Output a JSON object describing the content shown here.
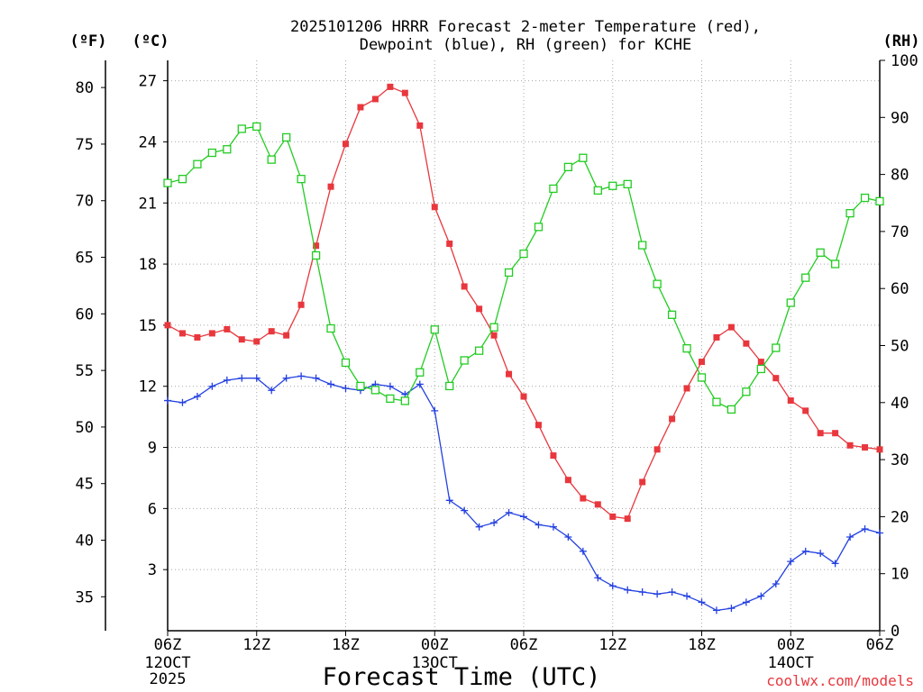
{
  "chart_data": {
    "type": "line",
    "title_line1": "2025101206 HRRR Forecast 2-meter Temperature (red),",
    "title_line2": "Dewpoint (blue), RH (green) for KCHE",
    "xlabel": "Forecast Time (UTC)",
    "credit": "coolwx.com/models",
    "units": {
      "fahrenheit": "(ºF)",
      "celsius": "(ºC)",
      "rh": "(RH)"
    },
    "x_range_hours": [
      0,
      48
    ],
    "x_ticks": [
      {
        "h": 0,
        "label": "06Z"
      },
      {
        "h": 6,
        "label": "12Z"
      },
      {
        "h": 12,
        "label": "18Z"
      },
      {
        "h": 18,
        "label": "00Z"
      },
      {
        "h": 24,
        "label": "06Z"
      },
      {
        "h": 30,
        "label": "12Z"
      },
      {
        "h": 36,
        "label": "18Z"
      },
      {
        "h": 42,
        "label": "00Z"
      },
      {
        "h": 48,
        "label": "06Z"
      }
    ],
    "date_labels": [
      {
        "h": 0,
        "lines": [
          "12OCT",
          "2025"
        ]
      },
      {
        "h": 18,
        "lines": [
          "13OCT"
        ]
      },
      {
        "h": 42,
        "lines": [
          "14OCT"
        ]
      }
    ],
    "y_left_c": {
      "range": [
        0,
        28
      ],
      "ticks": [
        3,
        6,
        9,
        12,
        15,
        18,
        21,
        24,
        27
      ]
    },
    "y_left_f": {
      "ticks": [
        35,
        40,
        45,
        50,
        55,
        60,
        65,
        70,
        75,
        80
      ]
    },
    "y_right_rh": {
      "range": [
        0,
        100
      ],
      "ticks": [
        0,
        10,
        20,
        30,
        40,
        50,
        60,
        70,
        80,
        90,
        100
      ]
    },
    "series": [
      {
        "name": "2-meter Temperature",
        "color": "#e8373d",
        "axis": "celsius",
        "marker": "filled-square",
        "values": [
          15.0,
          14.6,
          14.4,
          14.6,
          14.8,
          14.3,
          14.2,
          14.7,
          14.5,
          16.0,
          18.9,
          21.8,
          23.9,
          25.7,
          26.1,
          26.7,
          26.4,
          24.8,
          20.8,
          19.0,
          16.9,
          15.8,
          14.5,
          12.6,
          11.5,
          10.1,
          8.6,
          7.4,
          6.5,
          6.2,
          5.6,
          5.5,
          7.3,
          8.9,
          10.4,
          11.9,
          13.2,
          14.4,
          14.9,
          14.1,
          13.2,
          12.4,
          11.3,
          10.8,
          9.7,
          9.7,
          9.1,
          9.0,
          8.9
        ]
      },
      {
        "name": "Dewpoint",
        "color": "#2340e0",
        "axis": "celsius",
        "marker": "plus",
        "values": [
          11.3,
          11.2,
          11.5,
          12.0,
          12.3,
          12.4,
          12.4,
          11.8,
          12.4,
          12.5,
          12.4,
          12.1,
          11.9,
          11.8,
          12.1,
          12.0,
          11.6,
          12.1,
          10.8,
          6.4,
          5.9,
          5.1,
          5.3,
          5.8,
          5.6,
          5.2,
          5.1,
          4.6,
          3.9,
          2.6,
          2.2,
          2.0,
          1.9,
          1.8,
          1.9,
          1.7,
          1.4,
          1.0,
          1.1,
          1.4,
          1.7,
          2.3,
          3.4,
          3.9,
          3.8,
          3.3,
          4.6,
          5.0,
          4.8
        ]
      },
      {
        "name": "Relative Humidity",
        "color": "#22cc22",
        "axis": "rh",
        "marker": "open-square",
        "values": [
          78.5,
          79.2,
          81.8,
          83.8,
          84.4,
          88.0,
          88.4,
          82.6,
          86.5,
          79.2,
          65.8,
          53.0,
          47.0,
          42.9,
          42.2,
          40.7,
          40.3,
          45.3,
          52.8,
          42.9,
          47.4,
          49.1,
          53.2,
          62.8,
          66.1,
          70.8,
          77.5,
          81.3,
          82.9,
          77.2,
          78.0,
          78.3,
          67.6,
          60.8,
          55.4,
          49.5,
          44.4,
          40.1,
          38.8,
          41.9,
          45.9,
          49.6,
          57.5,
          61.9,
          66.3,
          64.3,
          73.2,
          75.9,
          75.3
        ]
      }
    ]
  }
}
